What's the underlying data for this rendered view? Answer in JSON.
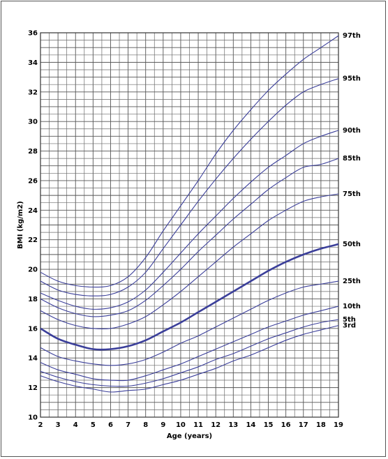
{
  "chart_data": {
    "type": "line",
    "title": "",
    "xlabel": "Age (years)",
    "ylabel": "BMI (kg/m2)",
    "xlim": [
      2,
      19
    ],
    "ylim": [
      10,
      36
    ],
    "x_ticks": [
      2,
      3,
      4,
      5,
      6,
      7,
      8,
      9,
      10,
      11,
      12,
      13,
      14,
      15,
      16,
      17,
      18,
      19
    ],
    "y_ticks": [
      10,
      12,
      14,
      16,
      18,
      20,
      22,
      24,
      26,
      28,
      30,
      32,
      34,
      36
    ],
    "grid": true,
    "line_color": "#3b3f9a",
    "x": [
      2,
      3,
      4,
      5,
      6,
      7,
      8,
      9,
      10,
      11,
      12,
      13,
      14,
      15,
      16,
      17,
      18,
      19
    ],
    "series": [
      {
        "name": "97th",
        "bold": false,
        "values": [
          19.8,
          19.2,
          18.9,
          18.8,
          18.9,
          19.5,
          20.8,
          22.6,
          24.3,
          26.0,
          27.8,
          29.4,
          30.8,
          32.1,
          33.2,
          34.2,
          35.0,
          35.8
        ]
      },
      {
        "name": "95th",
        "bold": false,
        "values": [
          19.2,
          18.6,
          18.3,
          18.2,
          18.3,
          18.8,
          19.8,
          21.4,
          23.0,
          24.6,
          26.1,
          27.5,
          28.8,
          30.0,
          31.1,
          32.0,
          32.5,
          32.9
        ]
      },
      {
        "name": "90th",
        "bold": false,
        "values": [
          18.4,
          17.9,
          17.5,
          17.3,
          17.4,
          17.8,
          18.6,
          19.8,
          21.1,
          22.4,
          23.6,
          24.8,
          25.9,
          26.9,
          27.7,
          28.5,
          29.0,
          29.4
        ]
      },
      {
        "name": "85th",
        "bold": false,
        "values": [
          18.0,
          17.4,
          17.0,
          16.8,
          16.9,
          17.2,
          17.9,
          18.9,
          20.0,
          21.2,
          22.3,
          23.4,
          24.4,
          25.4,
          26.2,
          26.9,
          27.1,
          27.5
        ]
      },
      {
        "name": "75th",
        "bold": false,
        "values": [
          17.2,
          16.6,
          16.2,
          16.0,
          16.0,
          16.3,
          16.8,
          17.6,
          18.5,
          19.5,
          20.5,
          21.5,
          22.4,
          23.3,
          24.0,
          24.6,
          24.9,
          25.1
        ]
      },
      {
        "name": "50th",
        "bold": true,
        "values": [
          16.0,
          15.3,
          14.9,
          14.6,
          14.6,
          14.8,
          15.2,
          15.8,
          16.4,
          17.1,
          17.8,
          18.5,
          19.2,
          19.9,
          20.5,
          21.0,
          21.4,
          21.7
        ]
      },
      {
        "name": "25th",
        "bold": false,
        "values": [
          14.7,
          14.1,
          13.8,
          13.6,
          13.5,
          13.6,
          13.9,
          14.4,
          15.0,
          15.5,
          16.1,
          16.7,
          17.3,
          17.9,
          18.4,
          18.8,
          19.0,
          19.2
        ]
      },
      {
        "name": "10th",
        "bold": false,
        "values": [
          13.7,
          13.2,
          12.9,
          12.6,
          12.5,
          12.5,
          12.8,
          13.2,
          13.6,
          14.1,
          14.6,
          15.1,
          15.6,
          16.1,
          16.5,
          16.9,
          17.2,
          17.5
        ]
      },
      {
        "name": "5th",
        "bold": false,
        "values": [
          13.1,
          12.7,
          12.4,
          12.2,
          12.1,
          12.1,
          12.3,
          12.6,
          13.0,
          13.4,
          13.9,
          14.3,
          14.8,
          15.3,
          15.7,
          16.1,
          16.4,
          16.6
        ]
      },
      {
        "name": "3rd",
        "bold": false,
        "values": [
          12.8,
          12.4,
          12.1,
          11.9,
          11.7,
          11.8,
          11.9,
          12.2,
          12.5,
          12.9,
          13.3,
          13.8,
          14.2,
          14.7,
          15.2,
          15.6,
          15.9,
          16.2
        ]
      }
    ]
  }
}
